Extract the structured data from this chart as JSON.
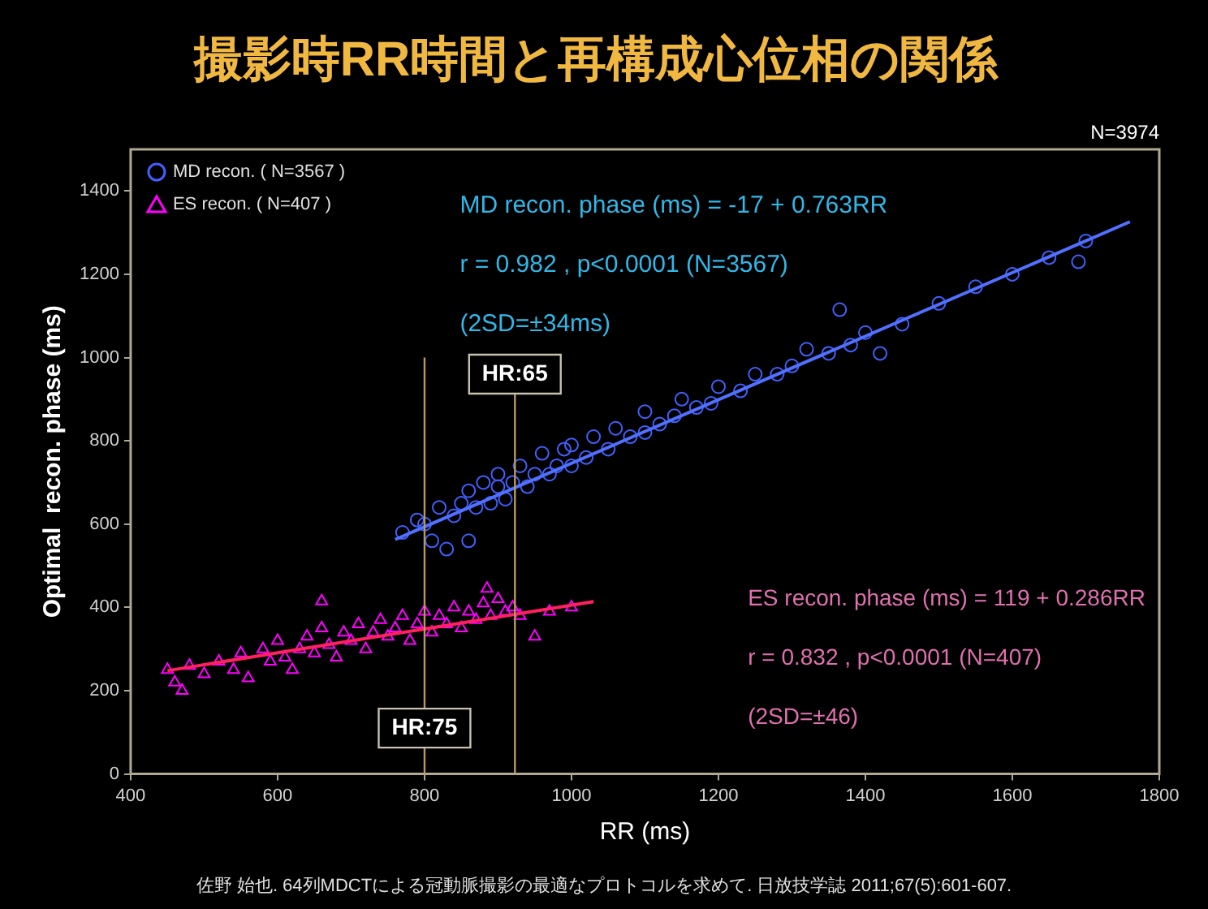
{
  "chart_data": {
    "type": "scatter",
    "title": "撮影時RR時間と再構成心位相の関係",
    "xlabel": "RR (ms)",
    "ylabel": "Optimal  recon. phase (ms)",
    "xlim": [
      400,
      1800
    ],
    "xticks": [
      400,
      600,
      800,
      1000,
      1200,
      1400,
      1600,
      1800
    ],
    "ylim": [
      0,
      1500
    ],
    "yticks": [
      0,
      200,
      400,
      600,
      800,
      1000,
      1200,
      1400
    ],
    "grid": false,
    "legend": "top left",
    "series": [
      {
        "name": "MD recon. ( N=3567 )",
        "type": "scatter",
        "marker": "circle",
        "color": "#4060ff",
        "x": [
          770,
          790,
          800,
          810,
          820,
          830,
          840,
          850,
          860,
          860,
          870,
          880,
          890,
          900,
          900,
          910,
          920,
          930,
          940,
          950,
          960,
          970,
          980,
          990,
          1000,
          1000,
          1020,
          1030,
          1050,
          1060,
          1080,
          1100,
          1100,
          1120,
          1140,
          1150,
          1170,
          1190,
          1200,
          1230,
          1250,
          1280,
          1300,
          1320,
          1350,
          1365,
          1380,
          1400,
          1420,
          1450,
          1500,
          1550,
          1600,
          1650,
          1690,
          1700
        ],
        "values": [
          580,
          610,
          600,
          560,
          640,
          540,
          620,
          650,
          560,
          680,
          640,
          700,
          650,
          690,
          720,
          660,
          700,
          740,
          690,
          720,
          770,
          720,
          740,
          780,
          740,
          790,
          760,
          810,
          780,
          830,
          810,
          820,
          870,
          840,
          860,
          900,
          880,
          890,
          930,
          920,
          960,
          960,
          980,
          1020,
          1010,
          1115,
          1030,
          1060,
          1010,
          1080,
          1130,
          1170,
          1200,
          1240,
          1230,
          1280
        ]
      },
      {
        "name": "ES recon. ( N=407 )",
        "type": "scatter",
        "marker": "triangle",
        "color": "#ff00ff",
        "x": [
          450,
          460,
          470,
          480,
          500,
          520,
          540,
          550,
          560,
          580,
          590,
          600,
          610,
          620,
          630,
          640,
          650,
          660,
          660,
          670,
          680,
          690,
          700,
          710,
          720,
          730,
          740,
          750,
          760,
          770,
          780,
          790,
          800,
          810,
          820,
          830,
          840,
          850,
          860,
          870,
          880,
          885,
          890,
          900,
          910,
          920,
          930,
          950,
          970,
          1000
        ],
        "values": [
          250,
          220,
          200,
          260,
          240,
          270,
          250,
          290,
          230,
          300,
          270,
          320,
          280,
          250,
          300,
          330,
          290,
          350,
          415,
          310,
          280,
          340,
          320,
          360,
          300,
          340,
          370,
          330,
          350,
          380,
          320,
          360,
          390,
          340,
          380,
          360,
          400,
          350,
          390,
          370,
          410,
          445,
          380,
          420,
          390,
          400,
          380,
          330,
          390,
          400
        ]
      },
      {
        "type": "line",
        "marker": "none",
        "color": "#5070ff",
        "x": [
          760,
          1760
        ],
        "values": [
          563,
          1326
        ]
      },
      {
        "type": "line",
        "marker": "none",
        "color": "#ff2060",
        "x": [
          450,
          1030
        ],
        "values": [
          248,
          414
        ]
      }
    ],
    "ref_lines": [
      {
        "axis": "x",
        "value": 800,
        "color": "#b89860"
      },
      {
        "axis": "x",
        "value": 923,
        "color": "#b89860"
      }
    ],
    "annotations": [
      {
        "text": "HR:75",
        "x": 800,
        "y": 110
      },
      {
        "text": "HR:65",
        "x": 923,
        "y": 960
      },
      "MD recon. phase (ms) = -17 + 0.763RR",
      "r = 0.982 , p<0.0001 (N=3567)",
      "(2SD=±34ms)",
      "ES recon. phase (ms) = 119 + 0.286RR",
      "r = 0.832 , p<0.0001 (N=407)",
      "(2SD=±46)",
      "N=3974",
      "佐野 始也. 64列MDCTによる冠動脈撮影の最適なプロトコルを求めて. 日放技学誌 2011;67(5):601-607."
    ]
  }
}
